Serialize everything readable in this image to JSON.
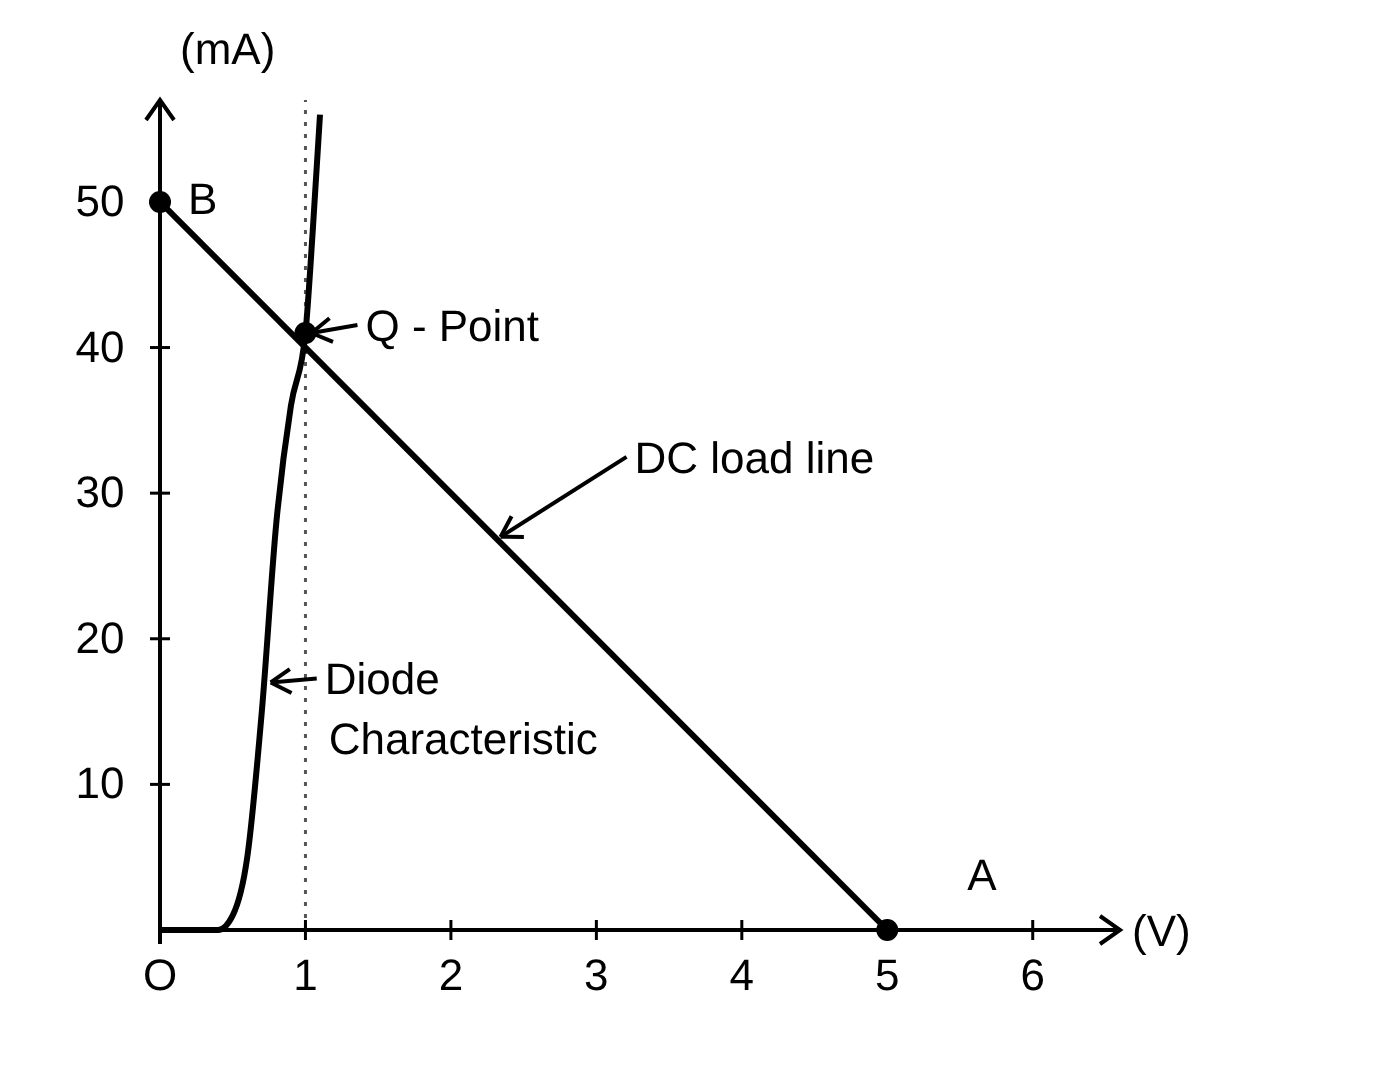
{
  "chart_data": {
    "type": "line",
    "xlabel": "(V)",
    "ylabel": "(mA)",
    "xlim": [
      0,
      6.6
    ],
    "ylim": [
      0,
      57
    ],
    "xticks": [
      {
        "value": 0,
        "label": "O"
      },
      1,
      2,
      3,
      4,
      5,
      6
    ],
    "yticks": [
      10,
      20,
      30,
      40,
      50
    ],
    "series": [
      {
        "color": "#000000",
        "x": [
          0,
          0.4,
          0.5,
          0.6,
          0.7,
          0.8,
          0.9,
          1,
          1.05,
          1.1
        ],
        "values": [
          0,
          0,
          1,
          5,
          15,
          28,
          36,
          41,
          48,
          56
        ]
      },
      {
        "color": "#000000",
        "x": [
          0,
          5
        ],
        "values": [
          50,
          0
        ]
      },
      {
        "type": "scatter",
        "color": "#000000",
        "marker": "circle",
        "x": [
          0,
          1,
          5
        ],
        "values": [
          50,
          41,
          0
        ]
      }
    ],
    "ref_lines": [
      {
        "axis": "x",
        "value": 1,
        "line_style": "dotted",
        "color": "#555555"
      }
    ],
    "annotations": [
      {
        "text": "B",
        "x": 0,
        "y": 50
      },
      {
        "text": "Q - Point",
        "x": 1,
        "y": 41
      },
      {
        "text": "DC load line",
        "x": 2.3,
        "y": 27
      },
      {
        "text": "Diode Characteristic",
        "x": 0.72,
        "y": 17
      },
      {
        "text": "A",
        "x": 5,
        "y": 0
      }
    ],
    "grid": false
  }
}
